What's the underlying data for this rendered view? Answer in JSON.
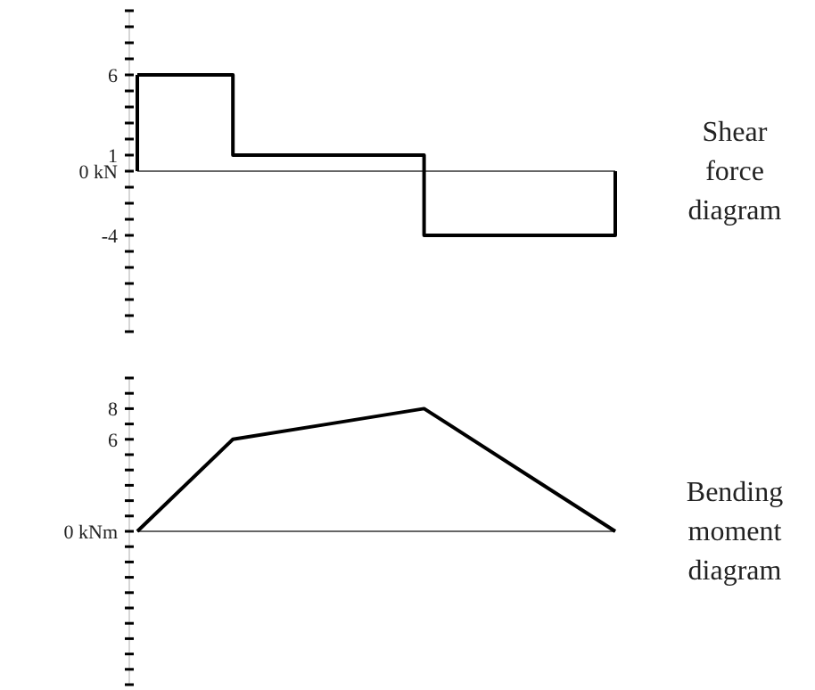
{
  "chart_data": [
    {
      "type": "step",
      "annotations": [
        "Shear force diagram"
      ],
      "categories": [
        null,
        null,
        null,
        null,
        null,
        null
      ],
      "values": [
        6,
        1,
        1,
        -4,
        -4,
        0
      ],
      "color": "#000000",
      "ylim": [
        -10,
        10
      ],
      "tick_labels": "y",
      "yticks": [
        {
          "value": -10,
          "label": null
        },
        {
          "value": -9,
          "label": null
        },
        {
          "value": -8,
          "label": null
        },
        {
          "value": -7,
          "label": null
        },
        {
          "value": -6,
          "label": null
        },
        {
          "value": -5,
          "label": null
        },
        {
          "value": -4,
          "label": "-4"
        },
        {
          "value": -3,
          "label": null
        },
        {
          "value": -2,
          "label": null
        },
        {
          "value": -1,
          "label": null
        },
        {
          "value": 0,
          "label": "0 kN"
        },
        {
          "value": 1,
          "label": "1"
        },
        {
          "value": 2,
          "label": null
        },
        {
          "value": 3,
          "label": null
        },
        {
          "value": 4,
          "label": null
        },
        {
          "value": 5,
          "label": null
        },
        {
          "value": 6,
          "label": "6"
        },
        {
          "value": 7,
          "label": null
        },
        {
          "value": 8,
          "label": null
        },
        {
          "value": 9,
          "label": null
        },
        {
          "value": 10,
          "label": null
        }
      ]
    },
    {
      "type": "line",
      "annotations": [
        "Bending moment diagram"
      ],
      "categories": [
        null,
        null,
        null,
        null,
        null,
        null
      ],
      "values": [
        0,
        6,
        7,
        8,
        4,
        0
      ],
      "color": "#000000",
      "ylim": [
        -10,
        10
      ],
      "tick_labels": "y",
      "yticks": [
        {
          "value": -10,
          "label": null
        },
        {
          "value": -9,
          "label": null
        },
        {
          "value": -8,
          "label": null
        },
        {
          "value": -7,
          "label": null
        },
        {
          "value": -6,
          "label": null
        },
        {
          "value": -5,
          "label": null
        },
        {
          "value": -4,
          "label": null
        },
        {
          "value": -3,
          "label": null
        },
        {
          "value": -2,
          "label": null
        },
        {
          "value": -1,
          "label": null
        },
        {
          "value": 0,
          "label": "0 kNm"
        },
        {
          "value": 1,
          "label": null
        },
        {
          "value": 2,
          "label": null
        },
        {
          "value": 3,
          "label": null
        },
        {
          "value": 4,
          "label": null
        },
        {
          "value": 5,
          "label": null
        },
        {
          "value": 6,
          "label": "6"
        },
        {
          "value": 7,
          "label": null
        },
        {
          "value": 8,
          "label": "8"
        },
        {
          "value": 9,
          "label": null
        },
        {
          "value": 10,
          "label": null
        }
      ]
    }
  ]
}
